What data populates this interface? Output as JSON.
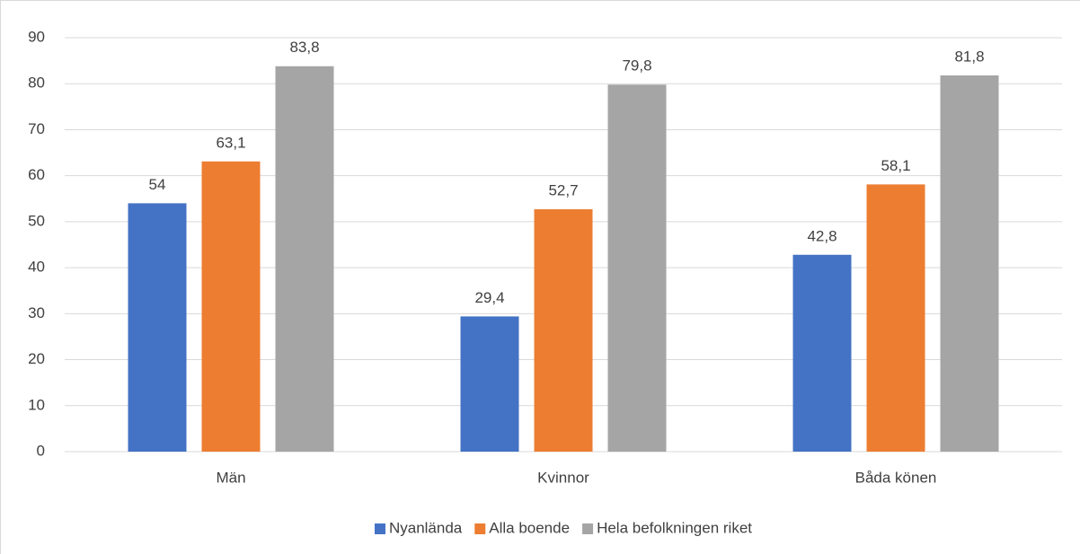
{
  "chart_data": {
    "type": "bar",
    "categories": [
      "Män",
      "Kvinnor",
      "Båda könen"
    ],
    "series": [
      {
        "name": "Nyanlända",
        "color": "#4472c4",
        "values": [
          54,
          29.4,
          42.8
        ],
        "value_labels": [
          "54",
          "29,4",
          "42,8"
        ]
      },
      {
        "name": "Alla boende",
        "color": "#ed7d31",
        "values": [
          63.1,
          52.7,
          58.1
        ],
        "value_labels": [
          "63,1",
          "52,7",
          "58,1"
        ]
      },
      {
        "name": "Hela befolkningen riket",
        "color": "#a5a5a5",
        "values": [
          83.8,
          79.8,
          81.8
        ],
        "value_labels": [
          "83,8",
          "79,8",
          "81,8"
        ]
      }
    ],
    "ylim": [
      0,
      90
    ],
    "yticks": [
      0,
      10,
      20,
      30,
      40,
      50,
      60,
      70,
      80,
      90
    ],
    "grid": true,
    "legend": "bottom"
  }
}
